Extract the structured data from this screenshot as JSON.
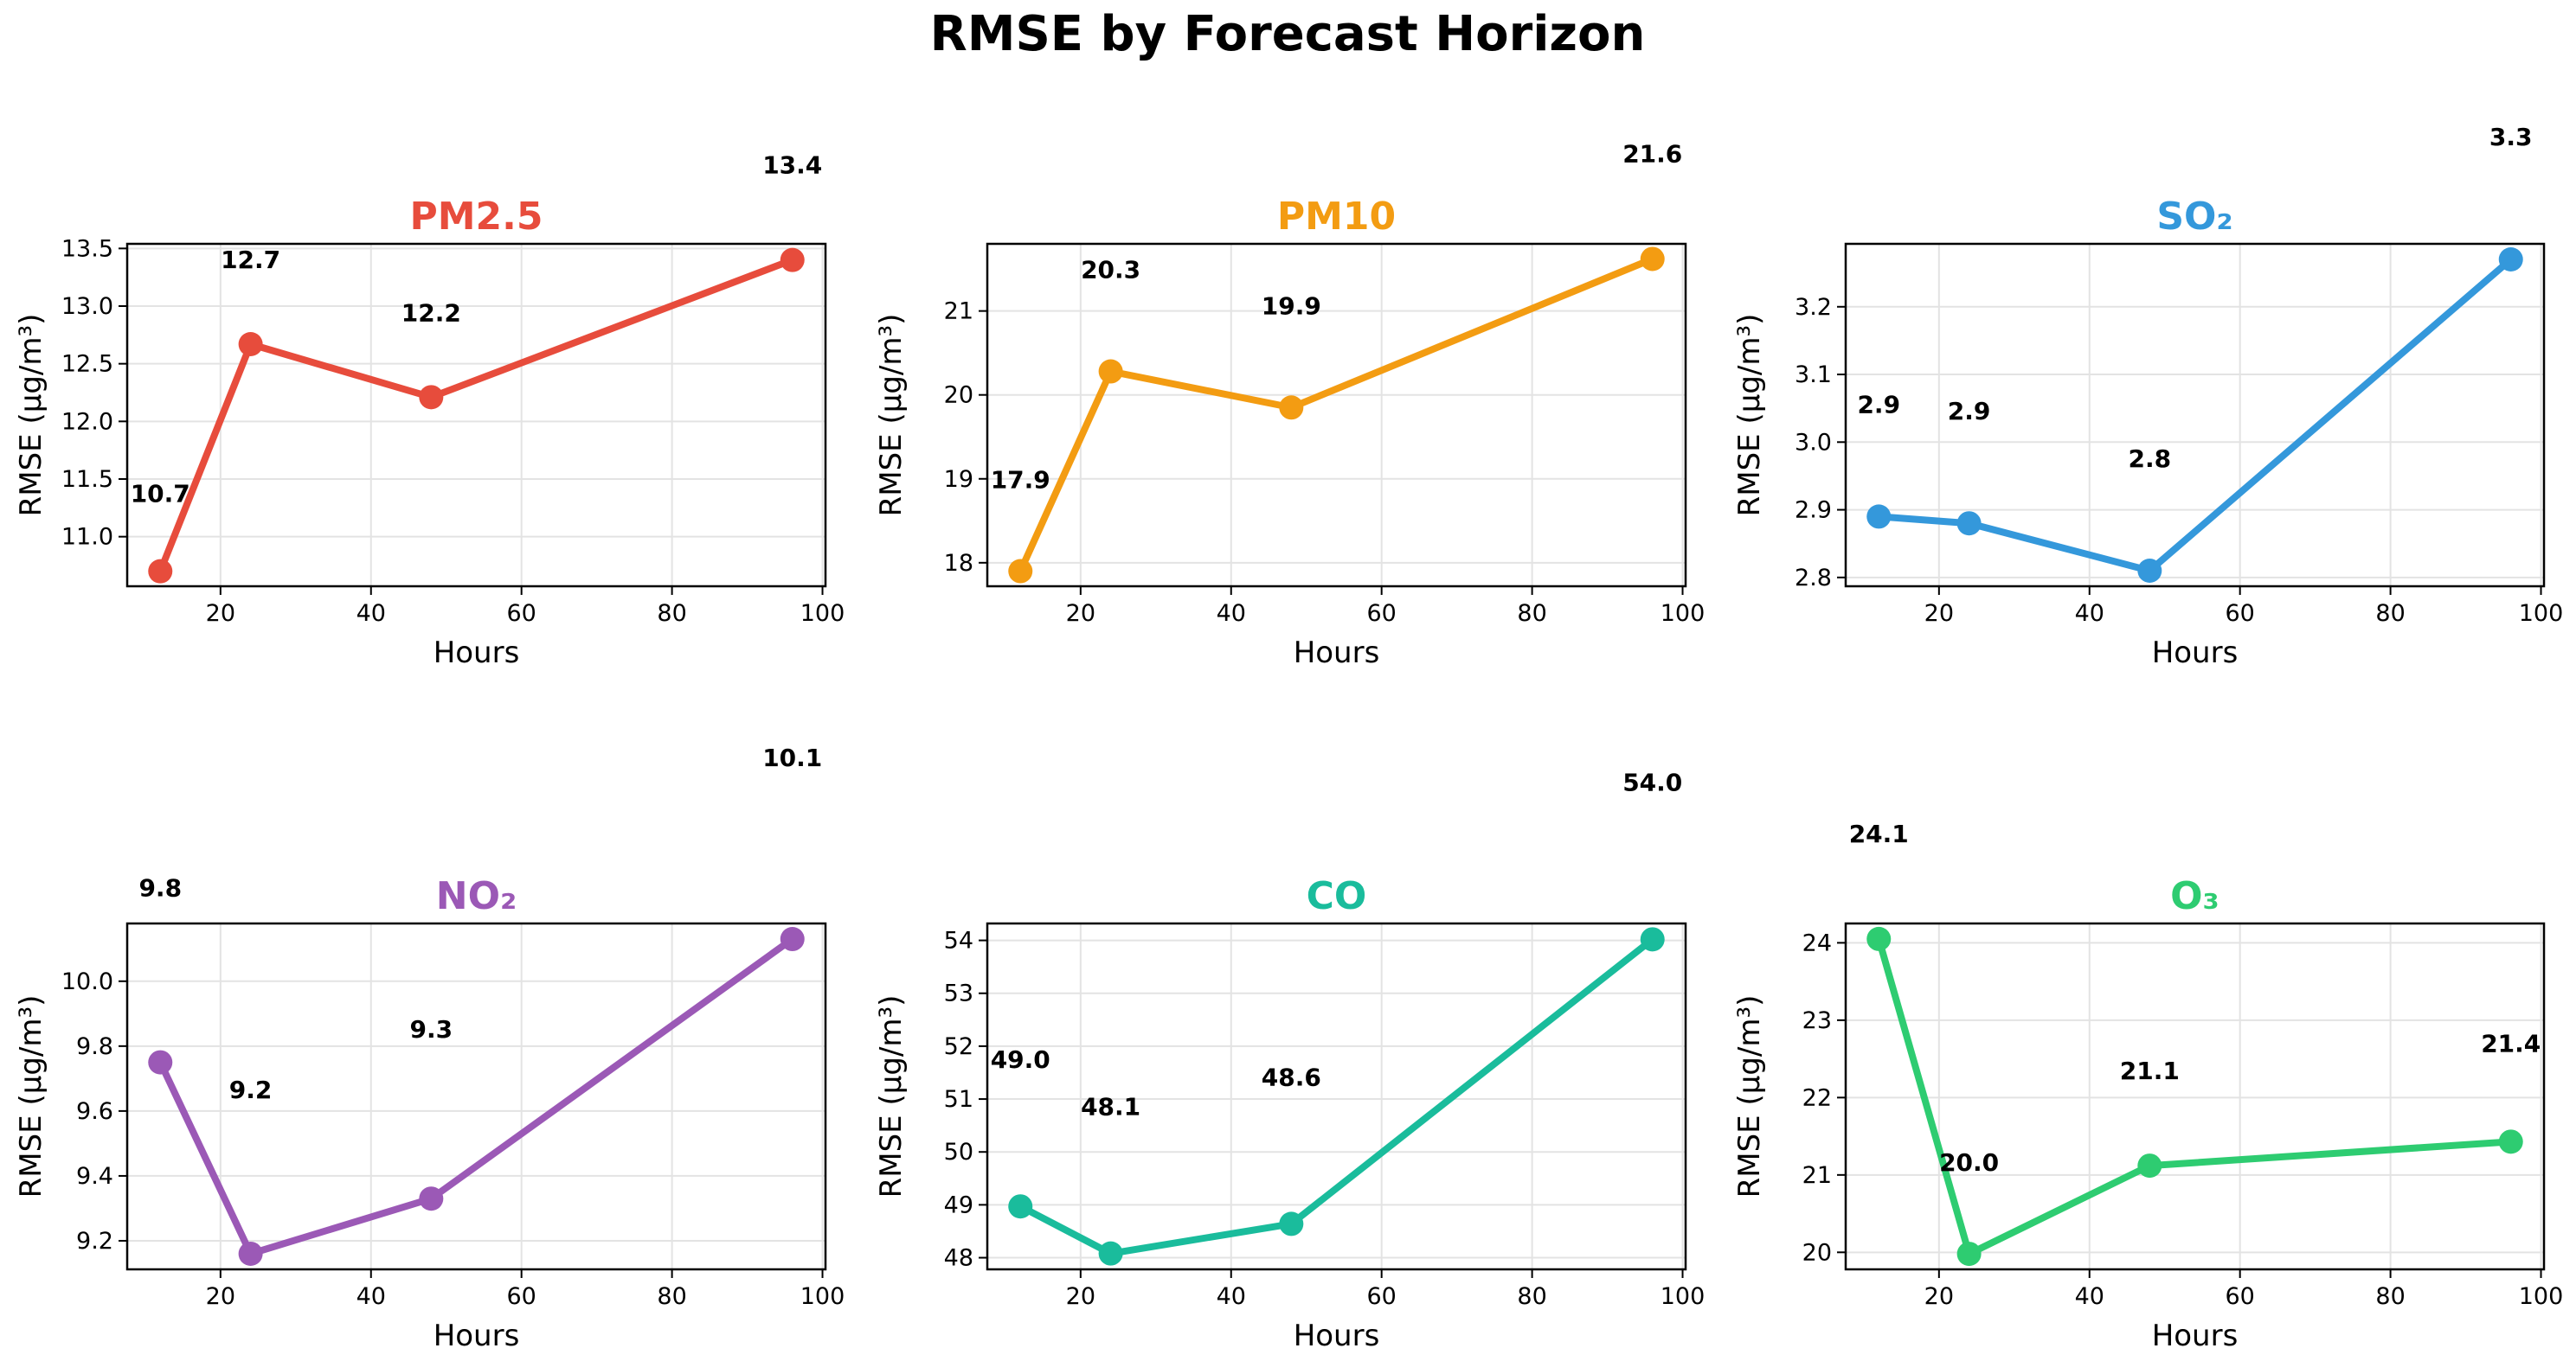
{
  "figure": {
    "title": "RMSE by Forecast Horizon"
  },
  "chart_data": [
    {
      "type": "line",
      "title": "PM2.5",
      "color": "#e74c3c",
      "xlabel": "Hours",
      "ylabel": "RMSE (µg/m³)",
      "x": [
        12,
        24,
        48,
        96
      ],
      "values": [
        10.7,
        12.67,
        12.21,
        13.4
      ],
      "labels": [
        "10.7",
        "12.7",
        "12.2",
        "13.4"
      ],
      "xlim": [
        7.6,
        100.4
      ],
      "ylim": [
        10.57,
        13.54
      ],
      "xticks": [
        20,
        40,
        60,
        80,
        100
      ],
      "yticks": [
        11.0,
        11.5,
        12.0,
        12.5,
        13.0,
        13.5
      ],
      "ytick_labels": [
        "11.0",
        "11.5",
        "12.0",
        "12.5",
        "13.0",
        "13.5"
      ],
      "grid": true
    },
    {
      "type": "line",
      "title": "PM10",
      "color": "#f39c12",
      "xlabel": "Hours",
      "ylabel": "RMSE (µg/m³)",
      "x": [
        12,
        24,
        48,
        96
      ],
      "values": [
        17.9,
        20.28,
        19.85,
        21.62
      ],
      "labels": [
        "17.9",
        "20.3",
        "19.9",
        "21.6"
      ],
      "xlim": [
        7.6,
        100.4
      ],
      "ylim": [
        17.72,
        21.8
      ],
      "xticks": [
        20,
        40,
        60,
        80,
        100
      ],
      "yticks": [
        18,
        19,
        20,
        21
      ],
      "ytick_labels": [
        "18",
        "19",
        "20",
        "21"
      ],
      "grid": true
    },
    {
      "type": "line",
      "title": "SO₂",
      "color": "#3498db",
      "xlabel": "Hours",
      "ylabel": "RMSE (µg/m³)",
      "x": [
        12,
        24,
        48,
        96
      ],
      "values": [
        2.89,
        2.88,
        2.81,
        3.27
      ],
      "labels": [
        "2.9",
        "2.9",
        "2.8",
        "3.3"
      ],
      "xlim": [
        7.6,
        100.4
      ],
      "ylim": [
        2.787,
        3.293
      ],
      "xticks": [
        20,
        40,
        60,
        80,
        100
      ],
      "yticks": [
        2.8,
        2.9,
        3.0,
        3.1,
        3.2
      ],
      "ytick_labels": [
        "2.8",
        "2.9",
        "3.0",
        "3.1",
        "3.2"
      ],
      "grid": true
    },
    {
      "type": "line",
      "title": "NO₂",
      "color": "#9b59b6",
      "xlabel": "Hours",
      "ylabel": "RMSE (µg/m³)",
      "x": [
        12,
        24,
        48,
        96
      ],
      "values": [
        9.75,
        9.16,
        9.33,
        10.13
      ],
      "labels": [
        "9.8",
        "9.2",
        "9.3",
        "10.1"
      ],
      "xlim": [
        7.6,
        100.4
      ],
      "ylim": [
        9.112,
        10.178
      ],
      "xticks": [
        20,
        40,
        60,
        80,
        100
      ],
      "yticks": [
        9.2,
        9.4,
        9.6,
        9.8,
        10.0
      ],
      "ytick_labels": [
        "9.2",
        "9.4",
        "9.6",
        "9.8",
        "10.0"
      ],
      "grid": true
    },
    {
      "type": "line",
      "title": "CO",
      "color": "#1abc9c",
      "xlabel": "Hours",
      "ylabel": "RMSE (µg/m³)",
      "x": [
        12,
        24,
        48,
        96
      ],
      "values": [
        48.97,
        48.08,
        48.64,
        54.02
      ],
      "labels": [
        "49.0",
        "48.1",
        "48.6",
        "54.0"
      ],
      "xlim": [
        7.6,
        100.4
      ],
      "ylim": [
        47.78,
        54.32
      ],
      "xticks": [
        20,
        40,
        60,
        80,
        100
      ],
      "yticks": [
        48,
        49,
        50,
        51,
        52,
        53,
        54
      ],
      "ytick_labels": [
        "48",
        "49",
        "50",
        "51",
        "52",
        "53",
        "54"
      ],
      "grid": true
    },
    {
      "type": "line",
      "title": "O₃",
      "color": "#2ecc71",
      "xlabel": "Hours",
      "ylabel": "RMSE (µg/m³)",
      "x": [
        12,
        24,
        48,
        96
      ],
      "values": [
        24.05,
        19.98,
        21.12,
        21.43
      ],
      "labels": [
        "24.1",
        "20.0",
        "21.1",
        "21.4"
      ],
      "xlim": [
        7.6,
        100.4
      ],
      "ylim": [
        19.78,
        24.25
      ],
      "xticks": [
        20,
        40,
        60,
        80,
        100
      ],
      "yticks": [
        20,
        21,
        22,
        23,
        24
      ],
      "ytick_labels": [
        "20",
        "21",
        "22",
        "23",
        "24"
      ],
      "grid": true
    }
  ]
}
